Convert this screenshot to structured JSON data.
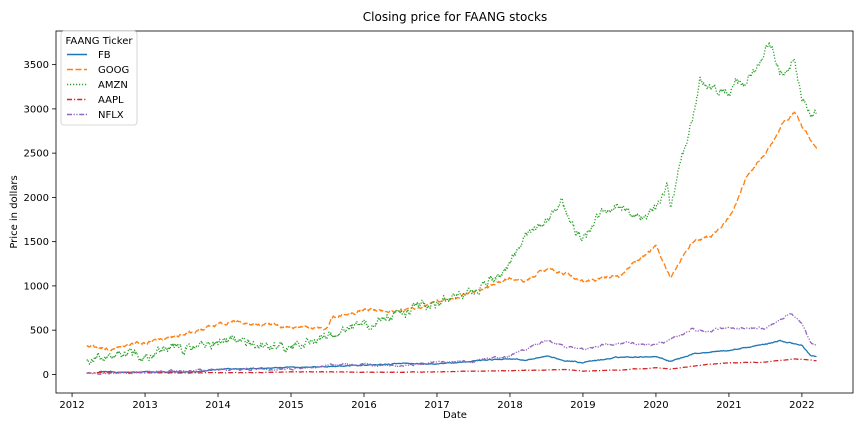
{
  "chart_data": {
    "type": "line",
    "title": "Closing price for FAANG stocks",
    "xlabel": "Date",
    "ylabel": "Price in dollars",
    "xlim": [
      2011.78,
      2022.7
    ],
    "ylim": [
      -210,
      3880
    ],
    "x_ticks": [
      2012,
      2013,
      2014,
      2015,
      2016,
      2017,
      2018,
      2019,
      2020,
      2021,
      2022
    ],
    "x_tick_labels": [
      "2012",
      "2013",
      "2014",
      "2015",
      "2016",
      "2017",
      "2018",
      "2019",
      "2020",
      "2021",
      "2022"
    ],
    "y_ticks": [
      0,
      500,
      1000,
      1500,
      2000,
      2500,
      3000,
      3500
    ],
    "y_tick_labels": [
      "0",
      "500",
      "1000",
      "1500",
      "2000",
      "2500",
      "3000",
      "3500"
    ],
    "grid": false,
    "legend": {
      "title": "FAANG Ticker",
      "placement": "top-left"
    },
    "series": [
      {
        "name": "FB",
        "color": "#1f77b4",
        "dash": "solid",
        "x": [
          2012.37,
          2012.5,
          2012.75,
          2013.0,
          2013.5,
          2014.0,
          2014.5,
          2015.0,
          2015.5,
          2016.0,
          2016.5,
          2017.0,
          2017.5,
          2018.0,
          2018.2,
          2018.5,
          2018.75,
          2019.0,
          2019.5,
          2020.0,
          2020.2,
          2020.5,
          2020.75,
          2021.0,
          2021.5,
          2021.7,
          2022.0,
          2022.12,
          2022.2
        ],
        "y": [
          38,
          28,
          21,
          26,
          25,
          55,
          68,
          78,
          88,
          104,
          120,
          116,
          150,
          180,
          160,
          200,
          160,
          135,
          195,
          205,
          150,
          230,
          260,
          270,
          340,
          380,
          330,
          210,
          200
        ],
        "noise": 6
      },
      {
        "name": "GOOG",
        "color": "#ff7f0e",
        "dash": "dashed",
        "x": [
          2012.2,
          2012.5,
          2012.75,
          2013.0,
          2013.5,
          2014.0,
          2014.2,
          2014.5,
          2015.0,
          2015.5,
          2015.55,
          2016.0,
          2016.5,
          2017.0,
          2017.5,
          2018.0,
          2018.2,
          2018.5,
          2018.75,
          2019.0,
          2019.5,
          2020.0,
          2020.2,
          2020.5,
          2020.75,
          2021.0,
          2021.25,
          2021.5,
          2021.75,
          2021.9,
          2022.0,
          2022.12,
          2022.2
        ],
        "y": [
          320,
          290,
          340,
          360,
          440,
          560,
          600,
          570,
          530,
          530,
          640,
          740,
          720,
          800,
          930,
          1080,
          1050,
          1200,
          1150,
          1040,
          1120,
          1450,
          1100,
          1500,
          1550,
          1750,
          2250,
          2500,
          2850,
          2980,
          2800,
          2650,
          2550
        ],
        "noise": 18
      },
      {
        "name": "AMZN",
        "color": "#2ca02c",
        "dash": "dotted",
        "x": [
          2012.2,
          2012.5,
          2012.75,
          2013.0,
          2013.5,
          2014.0,
          2014.2,
          2014.5,
          2015.0,
          2015.5,
          2016.0,
          2016.1,
          2016.5,
          2017.0,
          2017.5,
          2017.9,
          2018.2,
          2018.5,
          2018.7,
          2018.85,
          2019.0,
          2019.2,
          2019.5,
          2019.75,
          2020.0,
          2020.15,
          2020.2,
          2020.35,
          2020.5,
          2020.6,
          2020.75,
          2021.0,
          2021.25,
          2021.5,
          2021.55,
          2021.75,
          2021.9,
          2022.0,
          2022.12,
          2022.2
        ],
        "y": [
          180,
          220,
          250,
          260,
          290,
          370,
          390,
          320,
          310,
          430,
          620,
          530,
          720,
          800,
          980,
          1150,
          1500,
          1750,
          2000,
          1650,
          1500,
          1800,
          1900,
          1780,
          1880,
          2100,
          1900,
          2400,
          2900,
          3300,
          3200,
          3250,
          3300,
          3600,
          3720,
          3350,
          3550,
          3200,
          2900,
          2950
        ],
        "noise": 55
      },
      {
        "name": "AAPL",
        "color": "#d62728",
        "dash": "dashdot",
        "x": [
          2012.2,
          2012.7,
          2013.0,
          2013.5,
          2014.0,
          2014.5,
          2015.0,
          2015.5,
          2016.0,
          2016.5,
          2017.0,
          2017.5,
          2018.0,
          2018.75,
          2019.0,
          2019.5,
          2020.0,
          2020.2,
          2020.5,
          2020.75,
          2021.0,
          2021.5,
          2021.9,
          2022.0,
          2022.2
        ],
        "y": [
          17,
          24,
          18,
          16,
          19,
          22,
          28,
          30,
          25,
          24,
          29,
          36,
          42,
          55,
          38,
          50,
          75,
          60,
          95,
          115,
          130,
          140,
          175,
          170,
          155
        ],
        "noise": 2
      },
      {
        "name": "NFLX",
        "color": "#9467bd",
        "dash": "dashdotdot",
        "x": [
          2012.2,
          2012.5,
          2012.75,
          2013.0,
          2013.5,
          2014.0,
          2014.5,
          2015.0,
          2015.5,
          2016.0,
          2016.5,
          2017.0,
          2017.5,
          2018.0,
          2018.3,
          2018.5,
          2018.75,
          2019.0,
          2019.5,
          2020.0,
          2020.3,
          2020.5,
          2020.75,
          2021.0,
          2021.5,
          2021.85,
          2022.0,
          2022.12,
          2022.2
        ],
        "y": [
          12,
          8,
          11,
          25,
          35,
          55,
          65,
          60,
          100,
          110,
          95,
          135,
          155,
          210,
          320,
          380,
          320,
          290,
          360,
          330,
          420,
          510,
          490,
          530,
          520,
          690,
          560,
          380,
          340
        ],
        "noise": 12
      }
    ]
  }
}
